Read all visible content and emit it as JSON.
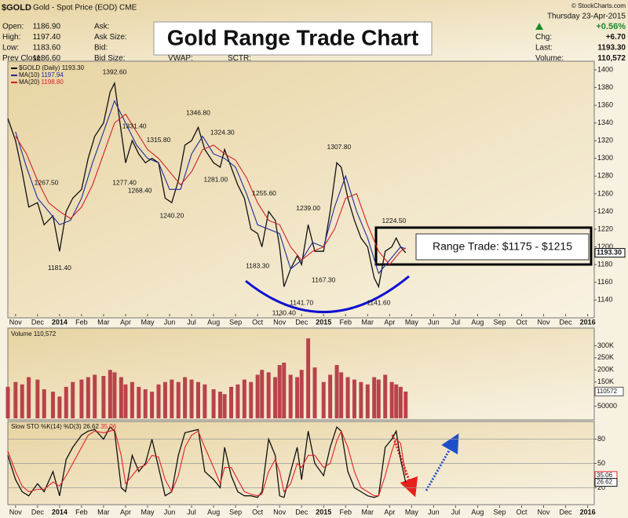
{
  "header": {
    "symbol": "$GOLD",
    "description": "Gold - Spot Price (EOD) CME",
    "credit": "© StockCharts.com",
    "left_fields": [
      {
        "label": "Open:",
        "value": "1186.90"
      },
      {
        "label": "High:",
        "value": "1197.40"
      },
      {
        "label": "Low:",
        "value": "1183.60"
      },
      {
        "label": "Prev Close:",
        "value": "1186.60"
      }
    ],
    "mid_fields": [
      "Ask:",
      "Ask Size:",
      "Bid:",
      "Bid Size:"
    ],
    "extra_fields": [
      "VWAP:",
      "SCTR:"
    ],
    "date": "Thursday  23-Apr-2015",
    "change_pct": "+0.56%",
    "right_fields": [
      {
        "label": "Chg:",
        "value": "+6.70"
      },
      {
        "label": "Last:",
        "value": "1193.30"
      },
      {
        "label": "Volume:",
        "value": "110,572"
      }
    ],
    "headline": "Gold Range Trade Chart",
    "range_note": "Range Trade: $1175 - $1215"
  },
  "chart_data": [
    {
      "type": "line",
      "x": [
        -0.35,
        0,
        0.3,
        0.6,
        1.0,
        1.3,
        1.7,
        2.0,
        2.3,
        2.6,
        3.0,
        3.3,
        3.6,
        4.0,
        4.3,
        4.5,
        4.8,
        5.0,
        5.3,
        5.6,
        5.9,
        6.2,
        6.5,
        6.8,
        7.1,
        7.4,
        7.7,
        8.0,
        8.3,
        8.6,
        9.0,
        9.3,
        9.5,
        9.8,
        10.1,
        10.4,
        10.7,
        11.0,
        11.2,
        11.5,
        11.8,
        12.0,
        12.2,
        12.5,
        12.8,
        13.0,
        13.3,
        13.6,
        14.0,
        14.3,
        14.6,
        14.8,
        15.1,
        15.4,
        15.7,
        16.0,
        16.3,
        16.5,
        16.8,
        17.1,
        17.3,
        17.5,
        17.73
      ],
      "series": [
        {
          "name": "$GOLD (Daily)",
          "color": "#111111",
          "values": [
            1345,
            1320,
            1285,
            1245,
            1250,
            1225,
            1235,
            1195,
            1240,
            1255,
            1265,
            1300,
            1325,
            1340,
            1375,
            1385,
            1330,
            1295,
            1320,
            1305,
            1295,
            1300,
            1295,
            1255,
            1250,
            1275,
            1315,
            1320,
            1335,
            1310,
            1295,
            1290,
            1310,
            1290,
            1270,
            1255,
            1220,
            1215,
            1200,
            1240,
            1230,
            1200,
            1155,
            1175,
            1190,
            1180,
            1225,
            1195,
            1195,
            1240,
            1295,
            1290,
            1255,
            1230,
            1210,
            1200,
            1165,
            1155,
            1195,
            1200,
            1210,
            1200,
            1193.3
          ]
        },
        {
          "name": "MA(10)",
          "color": "#1f2a9a",
          "x": [
            0,
            0.5,
            1,
            1.5,
            2,
            2.5,
            3,
            3.5,
            4,
            4.5,
            5,
            5.5,
            6,
            6.5,
            7,
            7.5,
            8,
            8.5,
            9,
            9.5,
            10,
            10.5,
            11,
            11.5,
            12,
            12.5,
            13,
            13.5,
            14,
            14.5,
            15,
            15.5,
            16,
            16.5,
            17,
            17.5,
            17.73
          ],
          "values": [
            1330,
            1290,
            1255,
            1240,
            1225,
            1230,
            1255,
            1295,
            1330,
            1365,
            1340,
            1315,
            1300,
            1295,
            1265,
            1265,
            1305,
            1325,
            1305,
            1300,
            1290,
            1260,
            1225,
            1220,
            1215,
            1175,
            1185,
            1205,
            1200,
            1245,
            1280,
            1240,
            1210,
            1170,
            1185,
            1200,
            1197.94
          ]
        },
        {
          "name": "MA(20)",
          "color": "#d0202a",
          "x": [
            0,
            0.5,
            1,
            1.5,
            2,
            2.5,
            3,
            3.5,
            4,
            4.5,
            5,
            5.5,
            6,
            6.5,
            7,
            7.5,
            8,
            8.5,
            9,
            9.5,
            10,
            10.5,
            11,
            11.5,
            12,
            12.5,
            13,
            13.5,
            14,
            14.5,
            15,
            15.5,
            16,
            16.5,
            17,
            17.5,
            17.73
          ],
          "values": [
            1325,
            1305,
            1275,
            1250,
            1240,
            1232,
            1245,
            1270,
            1305,
            1340,
            1350,
            1330,
            1310,
            1300,
            1285,
            1270,
            1285,
            1310,
            1315,
            1305,
            1298,
            1278,
            1250,
            1230,
            1225,
            1200,
            1185,
            1195,
            1200,
            1220,
            1255,
            1260,
            1225,
            1195,
            1180,
            1195,
            1198.8
          ]
        }
      ],
      "legend_values": [
        {
          "value": 1193.3,
          "label": "1193.30"
        },
        1197.94,
        {
          "value": 1198.8,
          "label": "1198.80"
        }
      ],
      "last_value": {
        "value": 1193.3,
        "label": "1193.30"
      },
      "annotations": [
        {
          "x": 1.4,
          "value": 1267.5,
          "label": "1267.50"
        },
        {
          "x": 2.0,
          "value": 1181.4,
          "label": "1181.40"
        },
        {
          "x": 4.5,
          "value": 1392.6,
          "label": "1392.60"
        },
        {
          "x": 5.4,
          "value": 1331.4,
          "label": "1331.40"
        },
        {
          "x": 4.95,
          "value": 1277.4,
          "label": "1277.40"
        },
        {
          "x": 6.5,
          "value": 1315.8,
          "label": "1315.80"
        },
        {
          "x": 5.65,
          "value": 1268.4,
          "label": "1268.40"
        },
        {
          "x": 7.1,
          "value": 1240.2,
          "label": "1240.20"
        },
        {
          "x": 8.3,
          "value": 1346.8,
          "label": "1346.80"
        },
        {
          "x": 9.4,
          "value": 1324.3,
          "label": "1324.30"
        },
        {
          "x": 9.1,
          "value": 1281.0,
          "label": "1281.00"
        },
        {
          "x": 11.3,
          "value": 1255.6,
          "label": "1255.60"
        },
        {
          "x": 11.0,
          "value": 1183.3,
          "label": "1183.30"
        },
        {
          "x": 12.2,
          "value": 1130.4,
          "label": "1130.40"
        },
        {
          "x": 13.0,
          "value": 1141.7,
          "label": "1141.70"
        },
        {
          "x": 13.3,
          "value": 1239.0,
          "label": "1239.00"
        },
        {
          "x": 14.0,
          "value": 1167.3,
          "label": "1167.30"
        },
        {
          "x": 14.7,
          "value": 1307.8,
          "label": "1307.80"
        },
        {
          "x": 16.5,
          "value": 1141.6,
          "label": "1141.60"
        },
        {
          "x": 17.2,
          "value": 1224.5,
          "label": "1224.50"
        }
      ],
      "xlim": [
        -0.35,
        26.3
      ],
      "xticks": [
        {
          "value": 0,
          "label": "Nov"
        },
        {
          "value": 1,
          "label": "Dec"
        },
        {
          "value": 2,
          "label": "2014"
        },
        {
          "value": 3,
          "label": "Feb"
        },
        {
          "value": 4,
          "label": "Mar"
        },
        {
          "value": 5,
          "label": "Apr"
        },
        {
          "value": 6,
          "label": "May"
        },
        {
          "value": 7,
          "label": "Jun"
        },
        {
          "value": 8,
          "label": "Jul"
        },
        {
          "value": 9,
          "label": "Aug"
        },
        {
          "value": 10,
          "label": "Sep"
        },
        {
          "value": 11,
          "label": "Oct"
        },
        {
          "value": 12,
          "label": "Nov"
        },
        {
          "value": 13,
          "label": "Dec"
        },
        {
          "value": 14,
          "label": "2015"
        },
        {
          "value": 15,
          "label": "Feb"
        },
        {
          "value": 16,
          "label": "Mar"
        },
        {
          "value": 17,
          "label": "Apr"
        },
        {
          "value": 18,
          "label": "May"
        },
        {
          "value": 19,
          "label": "Jun"
        },
        {
          "value": 20,
          "label": "Jul"
        },
        {
          "value": 21,
          "label": "Aug"
        },
        {
          "value": 22,
          "label": "Sep"
        },
        {
          "value": 23,
          "label": "Oct"
        },
        {
          "value": 24,
          "label": "Nov"
        },
        {
          "value": 25,
          "label": "Dec"
        },
        {
          "value": 26,
          "label": "2016"
        }
      ],
      "ylim": [
        1126,
        1408
      ],
      "yticks": [
        1140,
        1160,
        1180,
        1200,
        1220,
        1240,
        1260,
        1280,
        1300,
        1320,
        1340,
        1360,
        1380,
        1400
      ],
      "grid": false
    },
    {
      "type": "bar",
      "x": [
        -0.35,
        0,
        0.3,
        0.6,
        1.0,
        1.3,
        1.7,
        2.0,
        2.3,
        2.6,
        3.0,
        3.3,
        3.6,
        4.0,
        4.3,
        4.5,
        4.8,
        5.0,
        5.3,
        5.6,
        5.9,
        6.2,
        6.5,
        6.8,
        7.1,
        7.4,
        7.7,
        8.0,
        8.3,
        8.6,
        9.0,
        9.3,
        9.5,
        9.8,
        10.1,
        10.4,
        10.7,
        11.0,
        11.2,
        11.5,
        11.8,
        12.0,
        12.2,
        12.5,
        12.8,
        13.0,
        13.3,
        13.6,
        14.0,
        14.3,
        14.6,
        14.8,
        15.1,
        15.4,
        15.7,
        16.0,
        16.3,
        16.5,
        16.8,
        17.1,
        17.3,
        17.5,
        17.73
      ],
      "series": [
        {
          "name": "Volume",
          "color": "#b8434b",
          "values": [
            130000,
            150000,
            140000,
            170000,
            160000,
            120000,
            110000,
            90000,
            130000,
            150000,
            160000,
            170000,
            180000,
            175000,
            200000,
            190000,
            170000,
            140000,
            150000,
            130000,
            120000,
            110000,
            140000,
            150000,
            160000,
            150000,
            170000,
            160000,
            150000,
            140000,
            120000,
            110000,
            100000,
            130000,
            140000,
            160000,
            150000,
            180000,
            200000,
            190000,
            170000,
            220000,
            230000,
            180000,
            170000,
            200000,
            330000,
            210000,
            150000,
            180000,
            220000,
            190000,
            170000,
            160000,
            150000,
            140000,
            170000,
            160000,
            180000,
            150000,
            140000,
            130000,
            110572
          ]
        }
      ],
      "legend_value": {
        "value": 110572,
        "label": "110,572"
      },
      "ylim": [
        0,
        350000
      ],
      "yticks": [
        50000,
        {
          "value": 100000,
          "label": "100K"
        },
        {
          "value": 150000,
          "label": "150K"
        },
        {
          "value": 200000,
          "label": "200K"
        },
        {
          "value": 250000,
          "label": "250K"
        },
        {
          "value": 300000,
          "label": "300K"
        }
      ],
      "grid": false
    },
    {
      "type": "line",
      "title": "Slow STO %K(14) %D(3)",
      "x": [
        -0.35,
        0,
        0.3,
        0.6,
        1.0,
        1.3,
        1.7,
        2.0,
        2.3,
        2.6,
        3.0,
        3.3,
        3.6,
        4.0,
        4.3,
        4.5,
        4.8,
        5.0,
        5.3,
        5.6,
        5.9,
        6.2,
        6.5,
        6.8,
        7.1,
        7.4,
        7.7,
        8.0,
        8.3,
        8.6,
        9.0,
        9.3,
        9.5,
        9.8,
        10.1,
        10.4,
        10.7,
        11.0,
        11.2,
        11.5,
        11.8,
        12.0,
        12.2,
        12.5,
        12.8,
        13.0,
        13.3,
        13.6,
        14.0,
        14.3,
        14.6,
        14.8,
        15.1,
        15.4,
        15.7,
        16.0,
        16.3,
        16.5,
        16.8,
        17.1,
        17.3,
        17.5,
        17.73
      ],
      "series": [
        {
          "color": "#111111",
          "values": [
            60,
            30,
            15,
            10,
            25,
            15,
            40,
            10,
            55,
            70,
            85,
            90,
            92,
            80,
            95,
            90,
            20,
            15,
            60,
            40,
            50,
            80,
            45,
            10,
            15,
            60,
            88,
            90,
            92,
            40,
            30,
            20,
            70,
            35,
            15,
            10,
            10,
            8,
            15,
            80,
            60,
            10,
            8,
            40,
            70,
            30,
            90,
            50,
            35,
            70,
            95,
            90,
            40,
            20,
            15,
            10,
            8,
            10,
            70,
            80,
            90,
            55,
            26.62
          ]
        },
        {
          "color": "#e0202a",
          "values": [
            65,
            40,
            22,
            15,
            18,
            18,
            27,
            22,
            35,
            50,
            70,
            85,
            90,
            88,
            90,
            92,
            60,
            25,
            35,
            45,
            48,
            60,
            58,
            30,
            15,
            35,
            70,
            85,
            90,
            70,
            45,
            25,
            45,
            45,
            30,
            15,
            12,
            10,
            12,
            40,
            55,
            40,
            15,
            25,
            50,
            45,
            60,
            60,
            45,
            50,
            78,
            90,
            70,
            40,
            20,
            15,
            10,
            10,
            35,
            65,
            80,
            75,
            35.06
          ]
        }
      ],
      "ylim": [
        0,
        100
      ],
      "yticks": [
        20,
        50,
        80
      ],
      "grid": true
    }
  ]
}
